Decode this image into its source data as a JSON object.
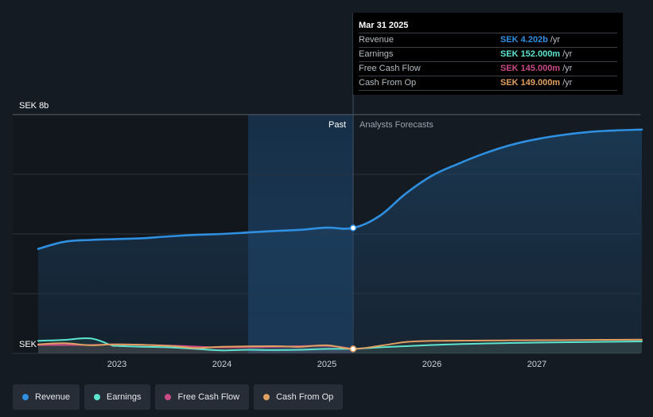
{
  "chart_data": {
    "type": "line",
    "currency_label_top": "SEK 8b",
    "currency_label_bottom": "SEK",
    "ylim": [
      0,
      8
    ],
    "y_unit": "SEK b",
    "x_ticks": [
      "2023",
      "2024",
      "2025",
      "2026",
      "2027"
    ],
    "past_label": "Past",
    "forecast_label": "Analysts Forecasts",
    "divider_date": "Mar 31 2025",
    "colors": {
      "revenue": "#2f8fe0",
      "earnings": "#5de4cf",
      "free_cash_flow": "#c94a86",
      "cash_from_op": "#e0a061"
    },
    "series": [
      {
        "name": "Revenue",
        "color_key": "revenue",
        "x": [
          2022.25,
          2022.5,
          2022.75,
          2023.0,
          2023.25,
          2023.5,
          2023.75,
          2024.0,
          2024.25,
          2024.5,
          2024.75,
          2025.0,
          2025.25,
          2025.5,
          2025.75,
          2026.0,
          2026.25,
          2026.5,
          2026.75,
          2027.0,
          2027.25,
          2027.5,
          2027.75,
          2028.0
        ],
        "values": [
          3.5,
          3.74,
          3.8,
          3.83,
          3.86,
          3.92,
          3.97,
          4.0,
          4.05,
          4.1,
          4.14,
          4.21,
          4.202,
          4.6,
          5.35,
          5.95,
          6.35,
          6.7,
          6.98,
          7.18,
          7.32,
          7.42,
          7.47,
          7.5
        ]
      },
      {
        "name": "Earnings",
        "color_key": "earnings",
        "x": [
          2022.25,
          2022.5,
          2022.75,
          2022.95,
          2023.0,
          2023.25,
          2023.5,
          2023.75,
          2024.0,
          2024.25,
          2024.5,
          2024.75,
          2025.0,
          2025.25,
          2025.5,
          2026.0,
          2026.5,
          2027.0,
          2027.5,
          2028.0
        ],
        "values": [
          0.42,
          0.45,
          0.5,
          0.27,
          0.25,
          0.22,
          0.2,
          0.15,
          0.1,
          0.12,
          0.11,
          0.12,
          0.15,
          0.152,
          0.2,
          0.28,
          0.33,
          0.36,
          0.38,
          0.4
        ]
      },
      {
        "name": "Free Cash Flow",
        "color_key": "free_cash_flow",
        "x": [
          2022.25,
          2022.75,
          2023.0,
          2023.5,
          2024.0,
          2024.5,
          2025.0,
          2025.25
        ],
        "values": [
          0.28,
          0.28,
          0.3,
          0.26,
          0.2,
          0.22,
          0.25,
          0.145
        ]
      },
      {
        "name": "Cash From Op",
        "color_key": "cash_from_op",
        "x": [
          2022.25,
          2022.5,
          2022.75,
          2023.0,
          2023.5,
          2023.75,
          2024.0,
          2024.5,
          2024.75,
          2025.0,
          2025.25,
          2025.5,
          2025.75,
          2026.0,
          2026.5,
          2027.0,
          2027.5,
          2028.0
        ],
        "values": [
          0.3,
          0.34,
          0.27,
          0.3,
          0.25,
          0.18,
          0.22,
          0.24,
          0.22,
          0.27,
          0.149,
          0.25,
          0.38,
          0.42,
          0.43,
          0.44,
          0.45,
          0.46
        ]
      }
    ]
  },
  "tooltip": {
    "date": "Mar 31 2025",
    "rows": [
      {
        "label": "Revenue",
        "value": "SEK 4.202b",
        "unit": "/yr",
        "color": "#2f8fe0"
      },
      {
        "label": "Earnings",
        "value": "SEK 152.000m",
        "unit": "/yr",
        "color": "#5de4cf"
      },
      {
        "label": "Free Cash Flow",
        "value": "SEK 145.000m",
        "unit": "/yr",
        "color": "#c94a86"
      },
      {
        "label": "Cash From Op",
        "value": "SEK 149.000m",
        "unit": "/yr",
        "color": "#e0a061"
      }
    ]
  },
  "legend": [
    {
      "label": "Revenue",
      "color": "#2f8fe0"
    },
    {
      "label": "Earnings",
      "color": "#5de4cf"
    },
    {
      "label": "Free Cash Flow",
      "color": "#c94a86"
    },
    {
      "label": "Cash From Op",
      "color": "#e0a061"
    }
  ]
}
